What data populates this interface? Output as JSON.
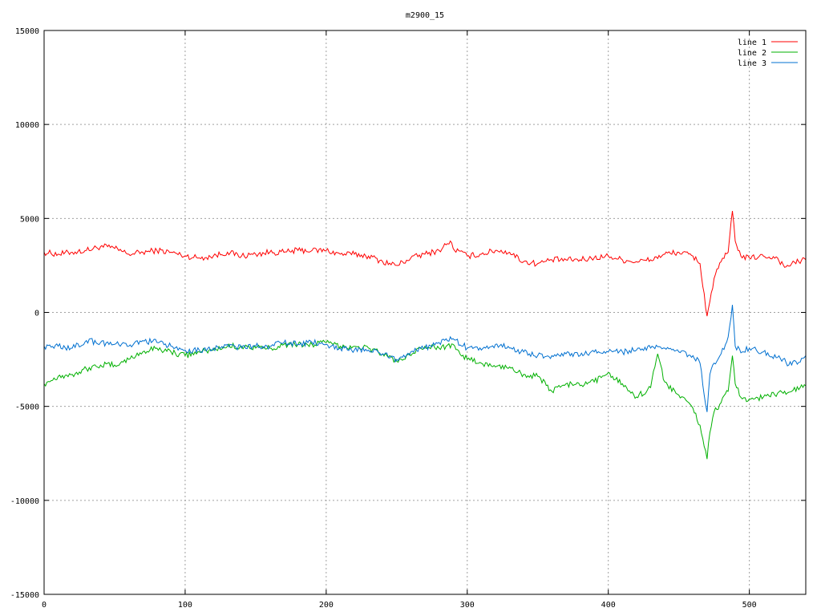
{
  "chart_data": {
    "type": "line",
    "title": "m2900_15",
    "xlabel": "",
    "ylabel": "",
    "xlim": [
      0,
      540
    ],
    "ylim": [
      -15000,
      15000
    ],
    "xticks": [
      0,
      100,
      200,
      300,
      400,
      500
    ],
    "yticks": [
      -15000,
      -10000,
      -5000,
      0,
      5000,
      10000,
      15000
    ],
    "grid": true,
    "legend_position": "top-right",
    "series": [
      {
        "name": "line 1",
        "color": "#ff0000",
        "x": [
          0,
          10,
          20,
          30,
          40,
          45,
          50,
          60,
          70,
          80,
          90,
          100,
          110,
          120,
          130,
          140,
          150,
          160,
          170,
          180,
          190,
          200,
          210,
          220,
          230,
          240,
          250,
          260,
          270,
          280,
          285,
          288,
          290,
          300,
          310,
          320,
          330,
          340,
          350,
          360,
          370,
          380,
          390,
          400,
          410,
          420,
          430,
          440,
          450,
          460,
          465,
          470,
          475,
          480,
          485,
          488,
          490,
          495,
          500,
          510,
          520,
          525,
          530,
          540
        ],
        "values": [
          3200,
          3100,
          3200,
          3300,
          3500,
          3500,
          3400,
          3100,
          3200,
          3300,
          3200,
          3000,
          2900,
          3000,
          3200,
          3000,
          3100,
          3200,
          3200,
          3300,
          3300,
          3300,
          3100,
          3100,
          3000,
          2700,
          2500,
          2900,
          3100,
          3300,
          3600,
          3800,
          3400,
          3000,
          3100,
          3300,
          3200,
          2700,
          2600,
          2800,
          2800,
          2800,
          2900,
          3000,
          2800,
          2700,
          2800,
          3100,
          3200,
          3000,
          2600,
          -200,
          1800,
          2700,
          3200,
          5400,
          3800,
          2900,
          2900,
          3000,
          2900,
          2400,
          2600,
          2800
        ]
      },
      {
        "name": "line 2",
        "color": "#00b000",
        "x": [
          0,
          10,
          20,
          30,
          40,
          50,
          60,
          70,
          80,
          90,
          100,
          110,
          120,
          130,
          140,
          150,
          160,
          170,
          180,
          190,
          200,
          210,
          220,
          230,
          240,
          250,
          260,
          270,
          280,
          290,
          300,
          310,
          320,
          330,
          340,
          350,
          360,
          370,
          380,
          390,
          400,
          410,
          420,
          430,
          435,
          440,
          450,
          460,
          465,
          470,
          472,
          475,
          480,
          485,
          488,
          490,
          495,
          500,
          510,
          520,
          530,
          540
        ],
        "values": [
          -3800,
          -3400,
          -3300,
          -3000,
          -2800,
          -2800,
          -2500,
          -2100,
          -1900,
          -2100,
          -2300,
          -2100,
          -2000,
          -1800,
          -1800,
          -1900,
          -1900,
          -1700,
          -1700,
          -1700,
          -1600,
          -1800,
          -1800,
          -1900,
          -2200,
          -2600,
          -2300,
          -1800,
          -1900,
          -1700,
          -2500,
          -2700,
          -2900,
          -2900,
          -3300,
          -3400,
          -4200,
          -3800,
          -3900,
          -3700,
          -3200,
          -3800,
          -4500,
          -4000,
          -2200,
          -3700,
          -4400,
          -5100,
          -6000,
          -7800,
          -6400,
          -5300,
          -4800,
          -4200,
          -2300,
          -3800,
          -4600,
          -4600,
          -4500,
          -4300,
          -4200,
          -3900
        ]
      },
      {
        "name": "line 3",
        "color": "#0070d0",
        "x": [
          0,
          10,
          20,
          30,
          40,
          50,
          60,
          70,
          80,
          90,
          100,
          110,
          120,
          130,
          140,
          150,
          160,
          170,
          180,
          190,
          200,
          210,
          220,
          230,
          240,
          250,
          260,
          270,
          280,
          290,
          300,
          310,
          320,
          330,
          340,
          350,
          360,
          370,
          380,
          390,
          400,
          410,
          420,
          430,
          440,
          450,
          460,
          465,
          470,
          472,
          475,
          480,
          485,
          488,
          490,
          495,
          500,
          510,
          520,
          530,
          540
        ],
        "values": [
          -1800,
          -1800,
          -1900,
          -1500,
          -1600,
          -1700,
          -1800,
          -1500,
          -1600,
          -1800,
          -2000,
          -2000,
          -1900,
          -1700,
          -1900,
          -1800,
          -1800,
          -1600,
          -1700,
          -1600,
          -1700,
          -1900,
          -2000,
          -2000,
          -2200,
          -2500,
          -2100,
          -1900,
          -1600,
          -1400,
          -1900,
          -2000,
          -1700,
          -1900,
          -2100,
          -2300,
          -2300,
          -2200,
          -2300,
          -2100,
          -2100,
          -2100,
          -2000,
          -1900,
          -1900,
          -2100,
          -2300,
          -2700,
          -5300,
          -3300,
          -2700,
          -2200,
          -1300,
          400,
          -1800,
          -2100,
          -1900,
          -2100,
          -2400,
          -2800,
          -2300
        ]
      }
    ]
  }
}
